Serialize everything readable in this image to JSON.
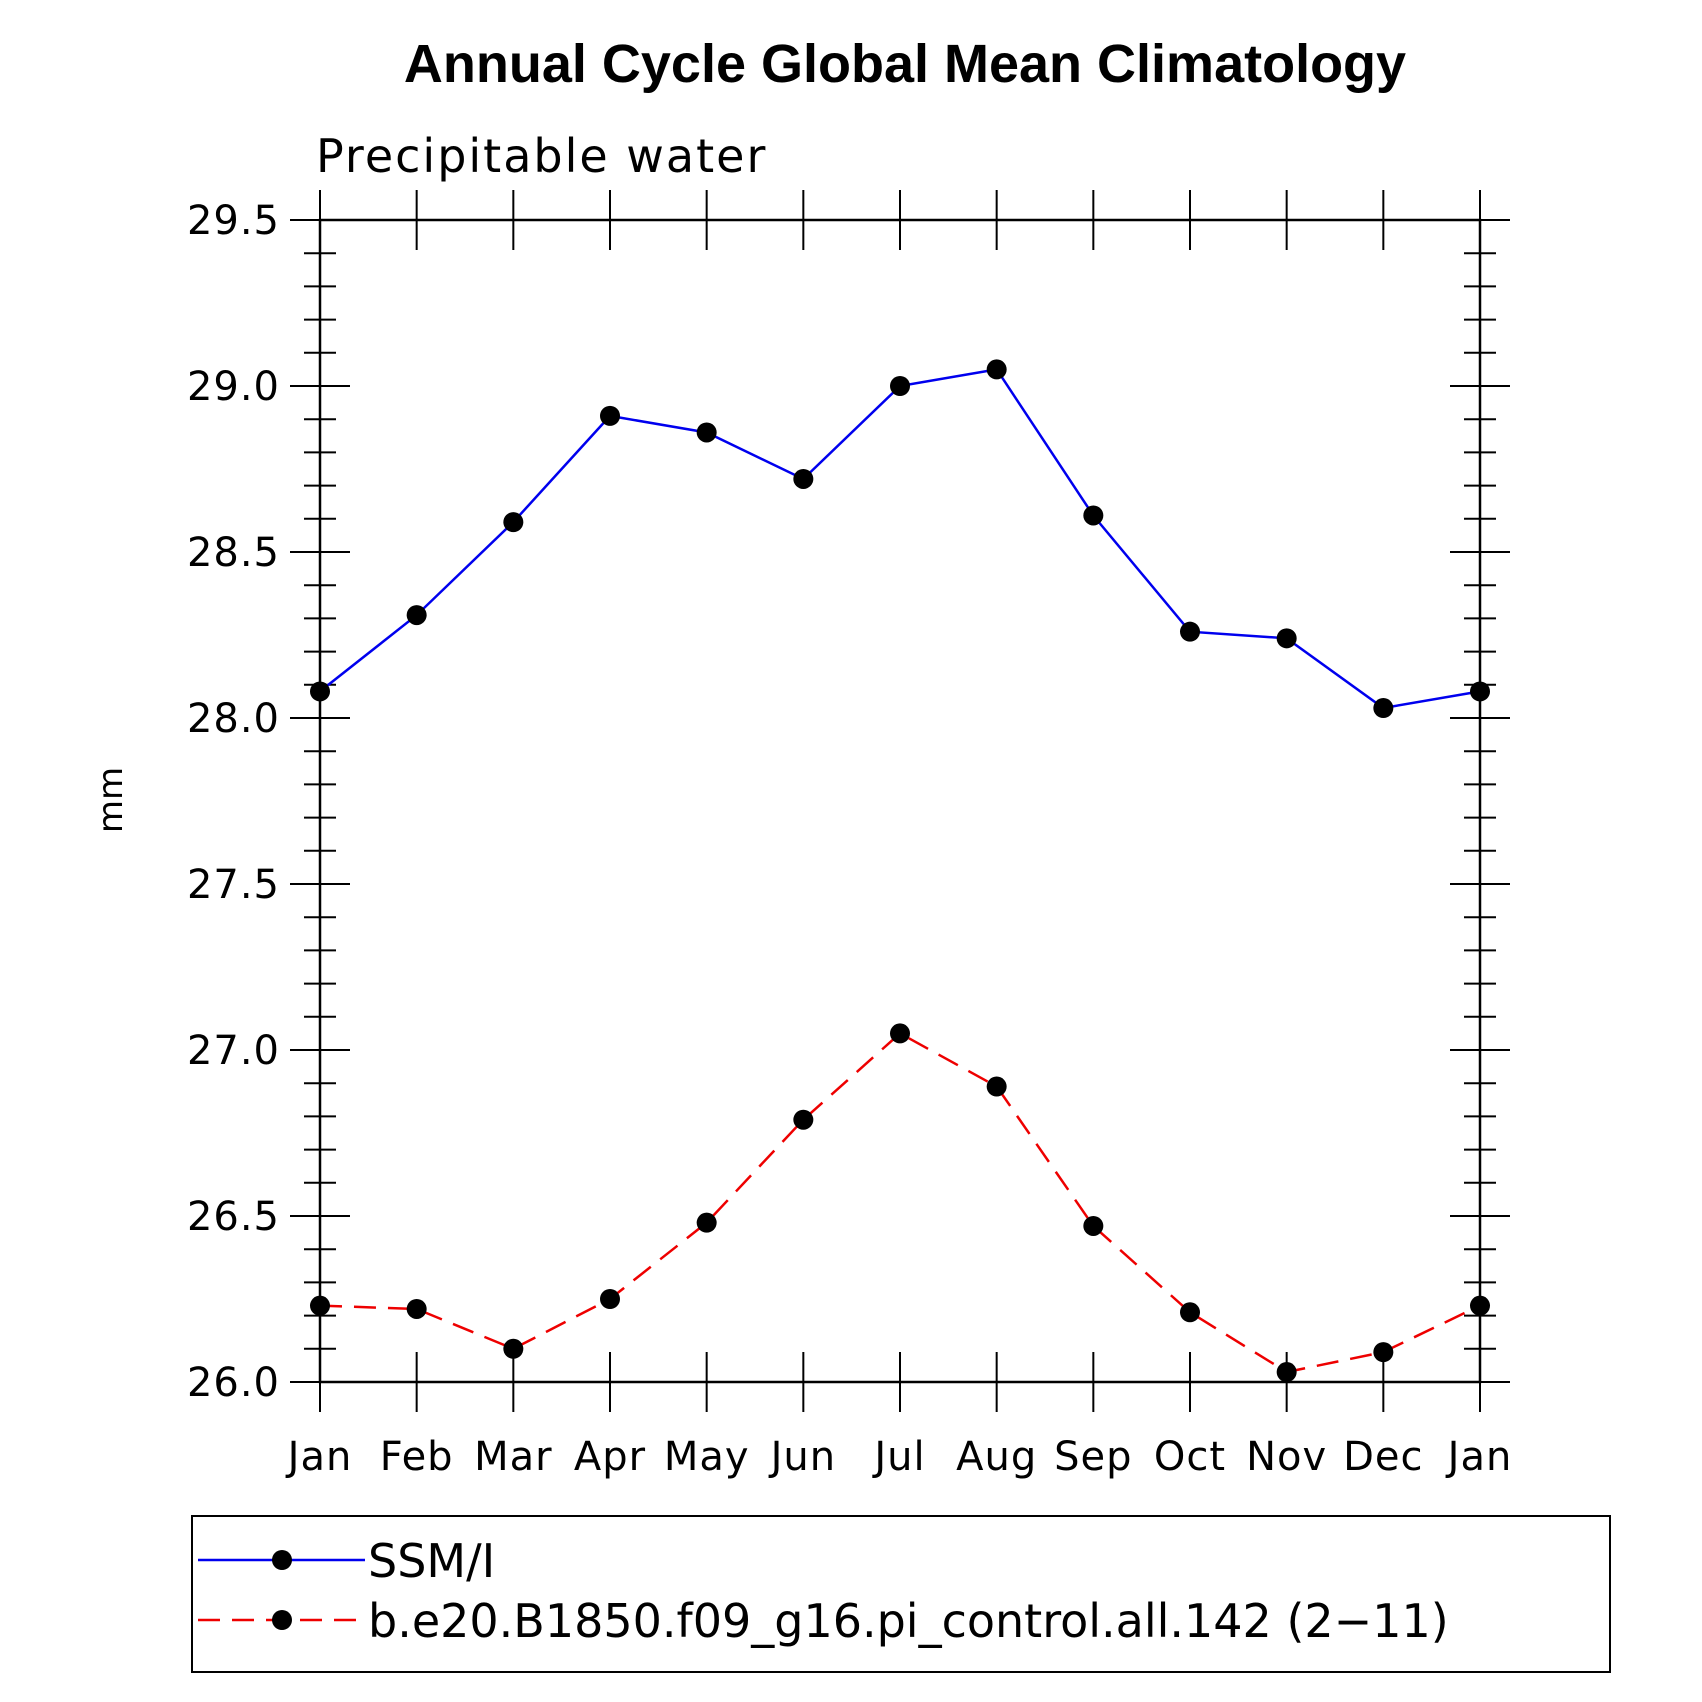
{
  "chart_data": {
    "type": "line",
    "title": "Annual Cycle Global Mean Climatology",
    "subtitle": "Precipitable water",
    "xlabel": "",
    "ylabel": "mm",
    "categories": [
      "Jan",
      "Feb",
      "Mar",
      "Apr",
      "May",
      "Jun",
      "Jul",
      "Aug",
      "Sep",
      "Oct",
      "Nov",
      "Dec",
      "Jan"
    ],
    "ylim": [
      26.0,
      29.5
    ],
    "yticks": [
      "26.0",
      "26.5",
      "27.0",
      "27.5",
      "28.0",
      "28.5",
      "29.0",
      "29.5"
    ],
    "grid": false,
    "legend_position": "bottom",
    "series": [
      {
        "name": "SSM/I",
        "color": "#0000ee",
        "style": "solid",
        "marker": "dot",
        "values": [
          28.08,
          28.31,
          28.59,
          28.91,
          28.86,
          28.72,
          29.0,
          29.05,
          28.61,
          28.26,
          28.24,
          28.03,
          28.08
        ]
      },
      {
        "name": "b.e20.B1850.f09_g16.pi_control.all.142 (2−11)",
        "color": "#ee0000",
        "style": "dashed",
        "marker": "dot",
        "values": [
          26.23,
          26.22,
          26.1,
          26.25,
          26.48,
          26.79,
          27.05,
          26.89,
          26.47,
          26.21,
          26.03,
          26.09,
          26.23
        ]
      }
    ]
  }
}
